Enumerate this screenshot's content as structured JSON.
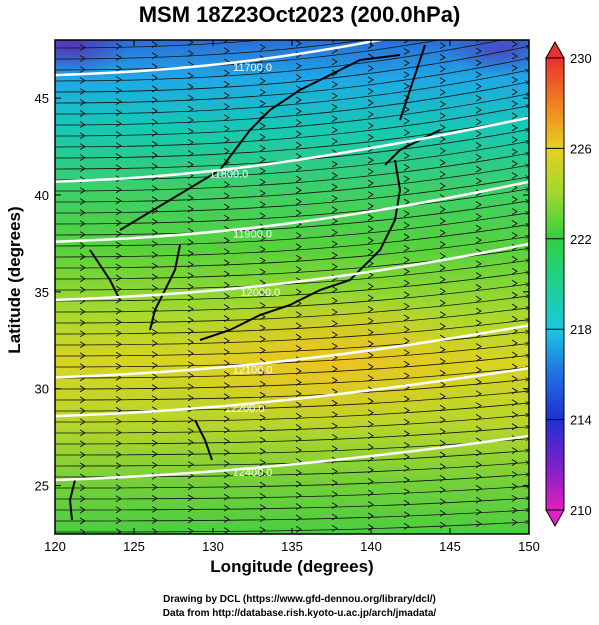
{
  "title": "MSM 18Z23Oct2023 (200.0hPa)",
  "xlabel": "Longitude (degrees)",
  "ylabel": "Latitude  (degrees)",
  "credits": [
    "Drawing by DCL (https://www.gfd-dennou.org/library/dcl/)",
    "Data from http://database.rish.kyoto-u.ac.jp/arch/jmadata/"
  ],
  "chart_data": {
    "type": "heatmap",
    "description_fields": [
      "temperature shading",
      "geopotential height contours",
      "wind streamlines"
    ],
    "xlim": [
      120,
      150
    ],
    "ylim": [
      22.5,
      48
    ],
    "xticks": [
      120,
      125,
      130,
      135,
      140,
      145,
      150
    ],
    "yticks": [
      25,
      30,
      35,
      40,
      45
    ],
    "colorbar": {
      "min": 210,
      "max": 230,
      "ticks": [
        210,
        214,
        218,
        222,
        226,
        230
      ]
    },
    "contours": [
      {
        "value": "11700.0",
        "label_lon": 132.5,
        "label_lat": 46.6
      },
      {
        "value": "11800.0",
        "label_lon": 131.0,
        "label_lat": 41.1
      },
      {
        "value": "11900.0",
        "label_lon": 132.5,
        "label_lat": 38.0
      },
      {
        "value": "12000.0",
        "label_lon": 133.0,
        "label_lat": 35.0
      },
      {
        "value": "12100.0",
        "label_lon": 132.5,
        "label_lat": 31.0
      },
      {
        "value": "12200.0",
        "label_lon": 132.0,
        "label_lat": 29.0
      },
      {
        "value": "12400.0",
        "label_lon": 132.5,
        "label_lat": 25.7
      }
    ]
  }
}
